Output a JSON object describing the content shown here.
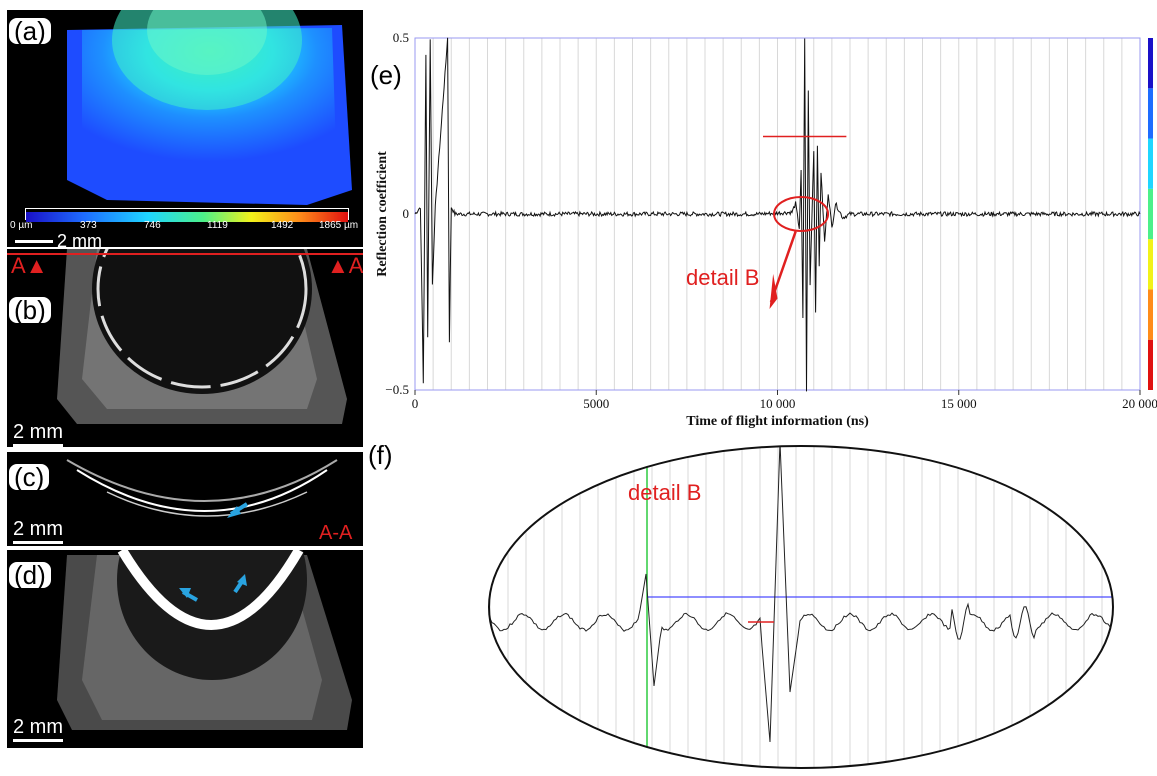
{
  "panel_a": {
    "label": "(a)",
    "colorbar_ticks": [
      "0 µm",
      "373",
      "746",
      "1119",
      "1492",
      "1865 µm"
    ],
    "colorbar_colors": [
      "#1a10c8",
      "#1e6cff",
      "#1fd6ff",
      "#4cf08a",
      "#f2f21a",
      "#ff8c1a",
      "#e01010"
    ],
    "scale_bar": "2 mm"
  },
  "panel_b": {
    "label": "(b)",
    "scale_bar": "2 mm",
    "section_mark_left": "A",
    "section_mark_right": "A"
  },
  "panel_c": {
    "label": "(c)",
    "scale_bar": "2 mm",
    "section_label": "A-A"
  },
  "panel_d": {
    "label": "(d)",
    "scale_bar": "2 mm"
  },
  "panel_e": {
    "label": "(e)",
    "annotation": "detail B",
    "chart_data": {
      "type": "line",
      "xlabel": "Time of flight information (ns)",
      "ylabel": "Reflection coefficient",
      "xlim": [
        0,
        20000
      ],
      "ylim": [
        -0.5,
        0.5
      ],
      "x_ticks": [
        0,
        5000,
        10000,
        15000,
        20000
      ],
      "x_tick_labels": [
        "0",
        "5000",
        "10 000",
        "15 000",
        "20 000"
      ],
      "y_tick_labels": [
        "0.5",
        "0",
        "−0.5"
      ],
      "y_ticks": [
        0.5,
        0,
        -0.5
      ],
      "grid": "vertical",
      "series": [
        {
          "points": [
            [
              0,
              0
            ],
            [
              150,
              0.02
            ],
            [
              230,
              -0.48
            ],
            [
              300,
              0.45
            ],
            [
              350,
              -0.35
            ],
            [
              420,
              0.5
            ],
            [
              480,
              -0.2
            ],
            [
              560,
              0.02
            ],
            [
              900,
              0.5
            ],
            [
              950,
              -0.36
            ],
            [
              1000,
              0.02
            ],
            [
              1100,
              0.0
            ],
            [
              3000,
              0.0
            ],
            [
              6000,
              0.0
            ],
            [
              9500,
              0.0
            ],
            [
              10400,
              0.005
            ],
            [
              10500,
              0.03
            ],
            [
              10600,
              -0.04
            ],
            [
              10650,
              0.12
            ],
            [
              10700,
              -0.3
            ],
            [
              10750,
              0.5
            ],
            [
              10800,
              -0.5
            ],
            [
              10850,
              0.35
            ],
            [
              10900,
              -0.2
            ],
            [
              11000,
              0.18
            ],
            [
              11050,
              -0.28
            ],
            [
              11100,
              0.2
            ],
            [
              11150,
              -0.15
            ],
            [
              11200,
              0.12
            ],
            [
              11300,
              -0.08
            ],
            [
              11400,
              0.06
            ],
            [
              11500,
              -0.04
            ],
            [
              11600,
              0.03
            ],
            [
              11800,
              -0.01
            ],
            [
              12000,
              0.0
            ],
            [
              20000,
              0.0
            ]
          ]
        }
      ]
    }
  },
  "panel_f": {
    "label": "(f)",
    "annotation": "detail B"
  }
}
